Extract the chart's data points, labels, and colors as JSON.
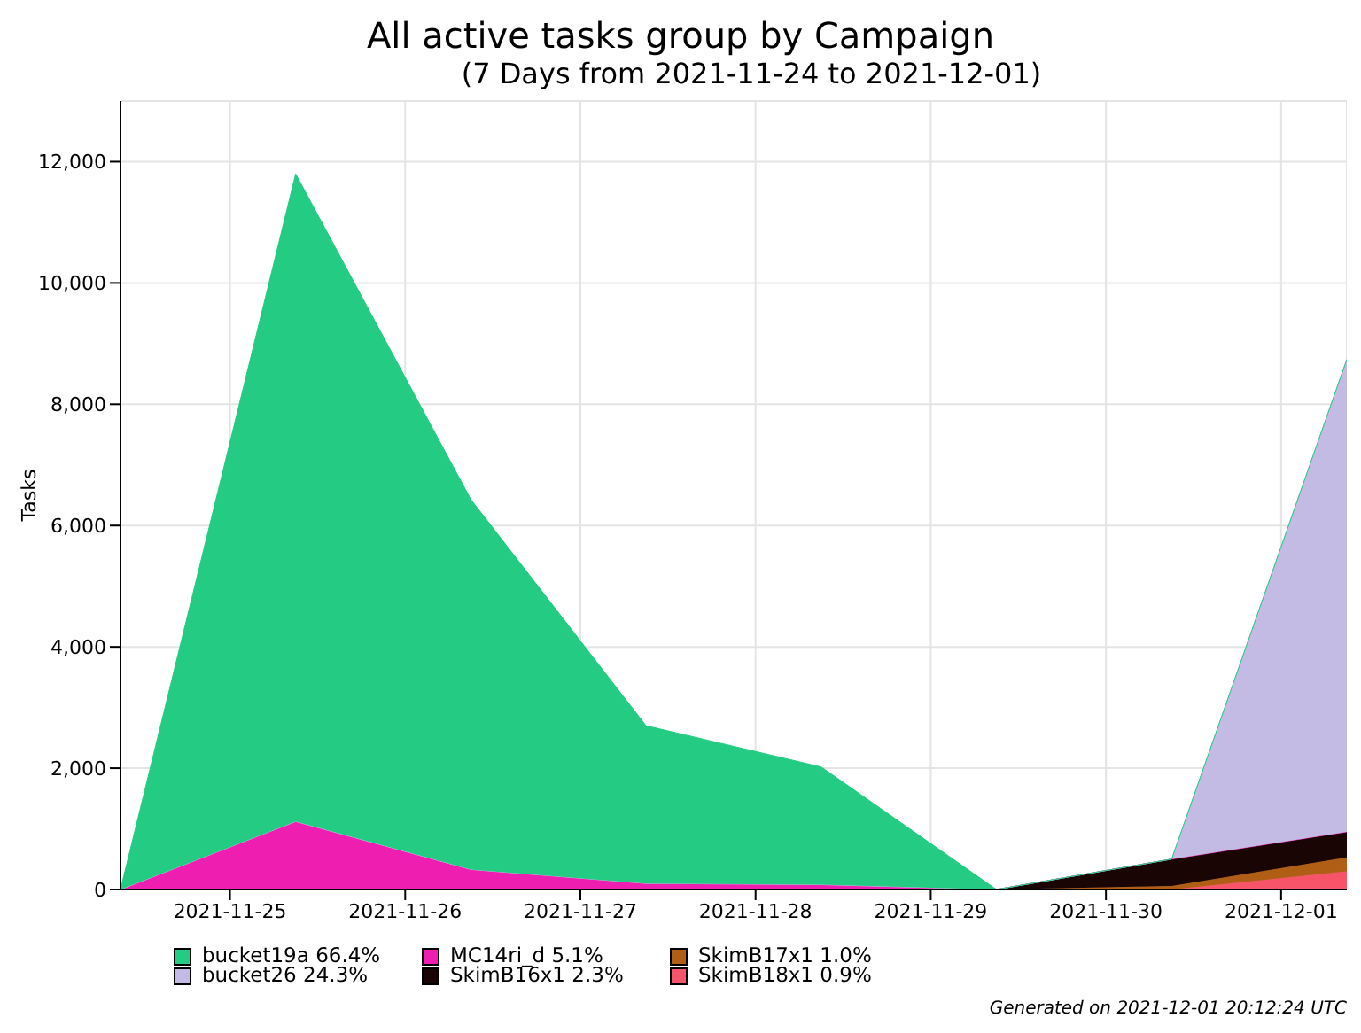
{
  "chart_data": {
    "type": "area",
    "title": "All active tasks group by Campaign",
    "subtitle": "(7 Days from 2021-11-24 to 2021-12-01)",
    "ylabel": "Tasks",
    "stacked": true,
    "x": [
      "2021-11-24T09:00",
      "2021-11-25T09:00",
      "2021-11-26T09:00",
      "2021-11-27T09:00",
      "2021-11-28T09:00",
      "2021-11-29T09:00",
      "2021-11-30T09:00",
      "2021-12-01T09:00"
    ],
    "series": [
      {
        "name": "SkimB18x1 0.9%",
        "color": "#f7546a",
        "values": [
          0,
          0,
          0,
          0,
          0,
          0,
          0,
          300
        ]
      },
      {
        "name": "SkimB17x1 1.0%",
        "color": "#b05e16",
        "values": [
          0,
          0,
          0,
          0,
          0,
          0,
          60,
          230
        ]
      },
      {
        "name": "SkimB16x1 2.3%",
        "color": "#1a0505",
        "values": [
          0,
          0,
          0,
          0,
          0,
          0,
          440,
          420
        ]
      },
      {
        "name": "MC14ri_d 5.1%",
        "color": "#ee1fb0",
        "values": [
          0,
          1120,
          330,
          100,
          80,
          0,
          0,
          0
        ]
      },
      {
        "name": "bucket26 24.3%",
        "color": "#c3bbe3",
        "values": [
          0,
          0,
          0,
          0,
          0,
          0,
          0,
          7790
        ]
      },
      {
        "name": "bucket19a 66.4%",
        "color": "#23cc82",
        "values": [
          0,
          10680,
          6100,
          2600,
          1940,
          0,
          0,
          0
        ]
      }
    ],
    "xlim": [
      "2021-11-24T09:00",
      "2021-12-01T09:00"
    ],
    "xticks": [
      "2021-11-25",
      "2021-11-26",
      "2021-11-27",
      "2021-11-28",
      "2021-11-29",
      "2021-11-30",
      "2021-12-01"
    ],
    "ylim": [
      0,
      13000
    ],
    "yticks": [
      0,
      {
        "value": 2000,
        "label": "2,000"
      },
      {
        "value": 4000,
        "label": "4,000"
      },
      {
        "value": 6000,
        "label": "6,000"
      },
      {
        "value": 8000,
        "label": "8,000"
      },
      {
        "value": 10000,
        "label": "10,000"
      },
      {
        "value": 12000,
        "label": "12,000"
      }
    ],
    "grid": true,
    "legend": "bottom",
    "annotations": [
      "Generated on 2021-12-01 20:12:24 UTC"
    ]
  }
}
